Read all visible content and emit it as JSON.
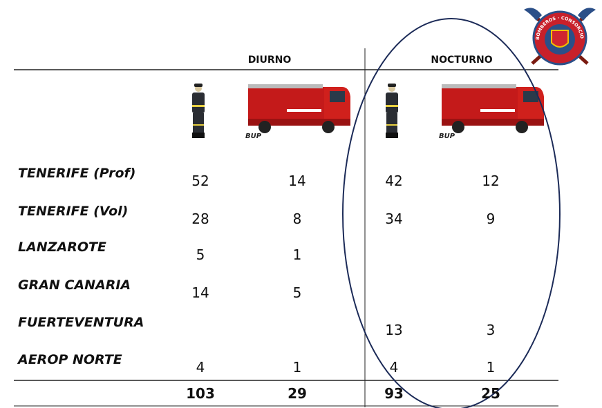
{
  "logo": {
    "text": "BOMBEROS · CONSORCIO DE TENERIFE"
  },
  "header": {
    "groups": [
      "DIURNO",
      "NOCTURNO"
    ],
    "truck_label": "BUP"
  },
  "table": {
    "rows": [
      {
        "label": "TENERIFE (Prof)",
        "values": [
          52,
          14,
          42,
          12
        ]
      },
      {
        "label": "TENERIFE (Vol)",
        "values": [
          28,
          8,
          34,
          9
        ]
      },
      {
        "label": "LANZAROTE",
        "values": [
          5,
          1,
          null,
          null
        ]
      },
      {
        "label": "GRAN CANARIA",
        "values": [
          14,
          5,
          null,
          null
        ]
      },
      {
        "label": "FUERTEVENTURA",
        "values": [
          null,
          null,
          13,
          3
        ]
      },
      {
        "label": "AEROP NORTE",
        "values": [
          4,
          1,
          4,
          1
        ]
      }
    ],
    "totals": [
      103,
      29,
      93,
      25
    ]
  }
}
